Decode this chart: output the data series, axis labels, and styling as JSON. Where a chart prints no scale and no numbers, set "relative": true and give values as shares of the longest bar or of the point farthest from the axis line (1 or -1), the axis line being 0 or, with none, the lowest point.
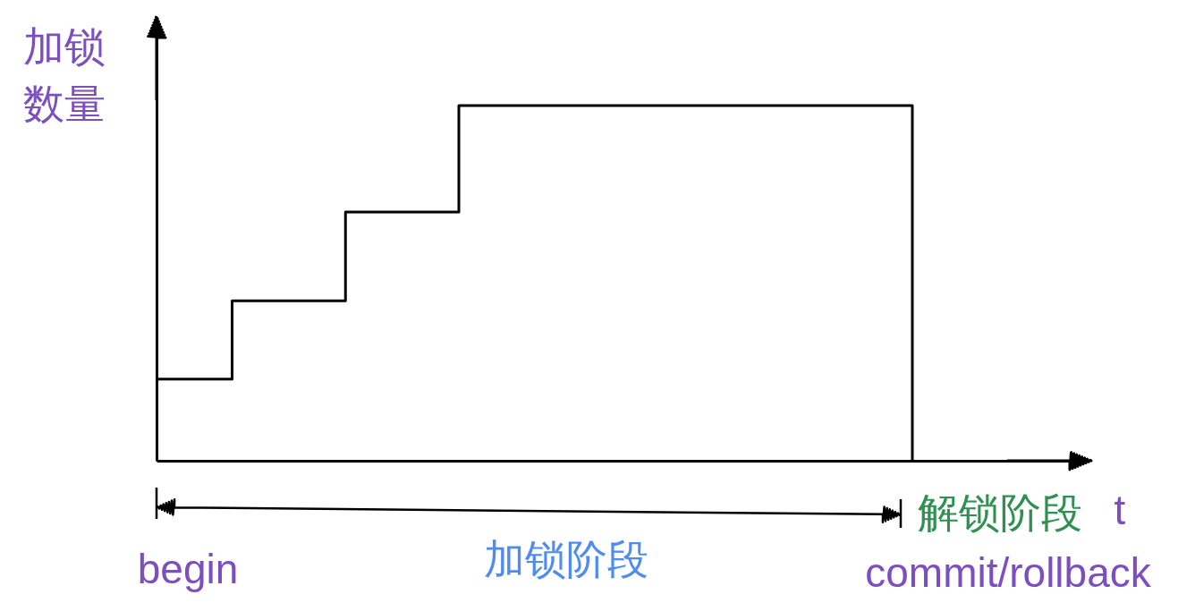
{
  "chart_data": {
    "type": "step",
    "xlabel": "t",
    "ylabel": "加锁数量",
    "annotations": [
      "begin",
      "加锁阶段",
      "解锁阶段",
      "commit/rollback"
    ],
    "categories": [
      null,
      null,
      null,
      null,
      null,
      null,
      null,
      null,
      null,
      null,
      null,
      null,
      null,
      null,
      null,
      null,
      null,
      null,
      null,
      null,
      null
    ],
    "values": [
      0.23,
      0.23,
      0.45,
      0.45,
      0.45,
      0.7,
      0.7,
      0.7,
      1,
      1,
      1,
      1,
      1,
      1,
      1,
      1,
      1,
      1,
      1,
      1,
      0
    ],
    "color": "#000000",
    "relative": true
  }
}
